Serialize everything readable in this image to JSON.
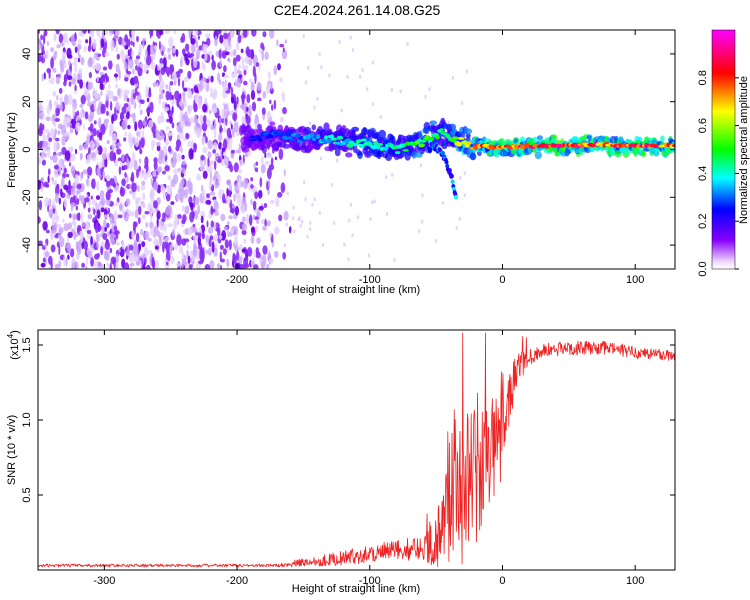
{
  "title": "C2E4.2024.261.14.08.G25",
  "chart_data": [
    {
      "type": "heatmap",
      "name": "spectrogram",
      "xlabel": "Height of straight line (km)",
      "ylabel": "Frequency (Hz)",
      "xlim": [
        -350,
        130
      ],
      "ylim": [
        -50,
        50
      ],
      "xticks": [
        -300,
        -200,
        -100,
        0,
        100
      ],
      "xtick_labels": [
        "-300",
        "-200",
        "-100",
        "0",
        "100"
      ],
      "yticks": [
        -40,
        -20,
        0,
        20,
        40
      ],
      "ytick_labels": [
        "-40",
        "-20",
        "0",
        "20",
        "40"
      ],
      "noise_region_x": [
        -350,
        -165
      ],
      "signal_track": {
        "x": [
          -190,
          -170,
          -150,
          -130,
          -110,
          -95,
          -80,
          -65,
          -55,
          -45,
          -35,
          -25,
          -10,
          0,
          20,
          40,
          60,
          80,
          100,
          130
        ],
        "freq_hz": [
          5,
          6,
          5,
          4,
          3,
          2,
          0,
          2,
          5,
          7,
          4,
          2,
          1,
          1,
          1.5,
          1.5,
          2,
          2,
          1.5,
          1.5
        ],
        "peak_amplitude": [
          0.25,
          0.3,
          0.35,
          0.4,
          0.45,
          0.5,
          0.45,
          0.55,
          0.55,
          0.45,
          0.6,
          0.75,
          0.8,
          0.85,
          0.9,
          0.95,
          0.9,
          0.85,
          0.9,
          0.85
        ]
      },
      "branch_feature": {
        "x": [
          -55,
          -45,
          -38,
          -35
        ],
        "freq_hz": [
          3,
          -2,
          -12,
          -20
        ]
      }
    },
    {
      "type": "colorbar",
      "name": "amplitude-colorbar",
      "label": "Normalized spectral amplitude",
      "range": [
        0,
        1
      ],
      "ticks": [
        0.0,
        0.2,
        0.4,
        0.6,
        0.8
      ],
      "tick_labels": [
        "0.0",
        "0.2",
        "0.4",
        "0.6",
        "0.8"
      ],
      "colormap": [
        "#ffffff",
        "#8800ff",
        "#0000ff",
        "#00ffff",
        "#00ff00",
        "#ffff00",
        "#ff0000",
        "#ff00ff"
      ]
    },
    {
      "type": "line",
      "name": "snr-plot",
      "xlabel": "Height of straight line (km)",
      "ylabel": "SNR (10 * v/v)",
      "y_multiplier_label": "(x10",
      "y_multiplier_exp": "4",
      "y_multiplier_close": ")",
      "xlim": [
        -350,
        130
      ],
      "ylim": [
        0,
        1.6
      ],
      "xticks": [
        -300,
        -200,
        -100,
        0,
        100
      ],
      "xtick_labels": [
        "-300",
        "-200",
        "-100",
        "0",
        "100"
      ],
      "yticks": [
        0.5,
        1.0,
        1.5
      ],
      "ytick_labels": [
        "0.5",
        "1.0",
        "1.5"
      ],
      "series_color": "#ee2222",
      "baseline_knots": {
        "x": [
          -350,
          -170,
          -150,
          -120,
          -100,
          -80,
          -60,
          -50,
          -45,
          -40,
          -35,
          -30,
          -25,
          -20,
          -15,
          -10,
          -5,
          0,
          5,
          10,
          15,
          20,
          30,
          50,
          80,
          100,
          130
        ],
        "y": [
          0.03,
          0.03,
          0.05,
          0.08,
          0.11,
          0.13,
          0.15,
          0.2,
          0.3,
          0.45,
          0.6,
          0.55,
          0.6,
          0.65,
          0.65,
          0.75,
          0.85,
          1.0,
          1.15,
          1.3,
          1.38,
          1.42,
          1.46,
          1.48,
          1.48,
          1.45,
          1.43
        ]
      },
      "noise_knots": {
        "x": [
          -350,
          -170,
          -150,
          -100,
          -60,
          -45,
          -40,
          -30,
          -20,
          -10,
          0,
          10,
          20,
          30,
          130
        ],
        "y": [
          0.01,
          0.01,
          0.03,
          0.06,
          0.08,
          0.25,
          0.45,
          0.5,
          0.5,
          0.4,
          0.25,
          0.12,
          0.06,
          0.05,
          0.04
        ]
      }
    }
  ]
}
